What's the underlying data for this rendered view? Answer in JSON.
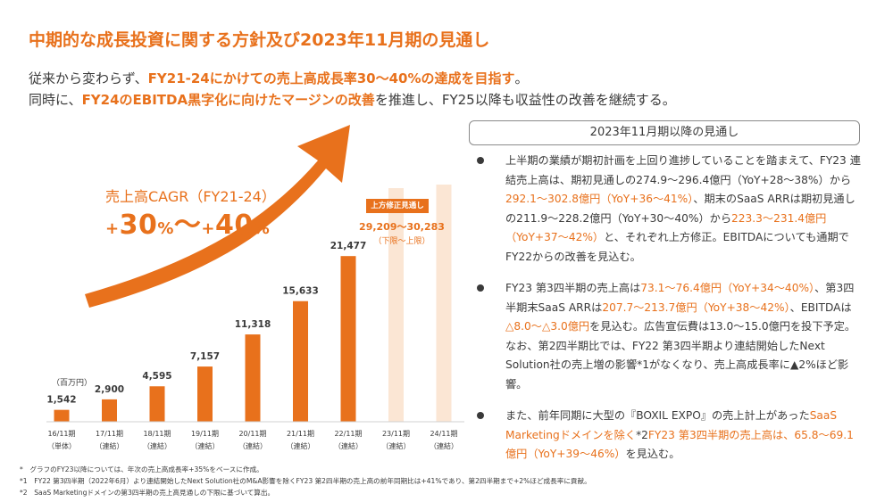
{
  "title": "中期的な成長投資に関する方針及び2023年11月期の見通し",
  "lead": {
    "line1_pre": "従来から変わらず、",
    "line1_hl": "FY21-24にかけての売上高成長率30～40%の達成を目指す",
    "line1_post": "。",
    "line2_pre": "同時に、",
    "line2_hl": "FY24のEBITDA黒字化に向けたマージンの改善",
    "line2_post": "を推進し、FY25以降も収益性の改善を継続する。"
  },
  "cagr": {
    "label": "売上高CAGR（FY21-24）",
    "plus1": "+",
    "value1": "30",
    "pct1": "%",
    "tilde": "～",
    "plus2": "+",
    "value2": "40",
    "pct2": "%"
  },
  "chart_data": {
    "type": "bar",
    "unit": "（百万円）",
    "categories": [
      "16/11期",
      "17/11期",
      "18/11期",
      "19/11期",
      "20/11期",
      "21/11期",
      "22/11期",
      "23/11期",
      "24/11期"
    ],
    "sublabels": [
      "（単体）",
      "（連結）",
      "（連結）",
      "（連結）",
      "（連結）",
      "（連結）",
      "（連結）",
      "（連結）",
      "（連結）"
    ],
    "values": [
      1542,
      2900,
      4595,
      7157,
      11318,
      15633,
      21477,
      30283,
      null
    ],
    "value_labels": [
      "1,542",
      "2,900",
      "4,595",
      "7,157",
      "11,318",
      "15,633",
      "21,477",
      "",
      ""
    ],
    "forecast_range": [
      29209,
      30283
    ],
    "revised_tag": "上方修正見通し",
    "revised_range_label": "29,209～30,283",
    "revised_note": "（下限～上限）",
    "colors": {
      "actual": "#e8711c",
      "forecast": "#fbe6d4",
      "text": "#3a3a3a"
    }
  },
  "outlook": {
    "header": "2023年11月期以降の見通し",
    "b1": [
      {
        "t": "上半期の業績が期初計画を上回り進捗していることを踏まえて、FY23 連結売上高は、期初見通しの274.9～296.4億円（YoY+28～38%）から",
        "hl": false
      },
      {
        "t": "292.1～302.8億円（YoY+36～41%）",
        "hl": true
      },
      {
        "t": "、期末のSaaS ARRは期初見通しの211.9～228.2億円（YoY+30～40%）から",
        "hl": false
      },
      {
        "t": "223.3～231.4億円（YoY+37～42%）",
        "hl": true
      },
      {
        "t": "と、それぞれ上方修正。EBITDAについても通期でFY22からの改善を見込む。",
        "hl": false
      }
    ],
    "b2": [
      {
        "t": "FY23 第3四半期の売上高は",
        "hl": false
      },
      {
        "t": "73.1～76.4億円（YoY+34～40%）",
        "hl": true
      },
      {
        "t": "、第3四半期末SaaS ARRは",
        "hl": false
      },
      {
        "t": "207.7～213.7億円（YoY+38～42%）",
        "hl": true
      },
      {
        "t": "、EBITDAは",
        "hl": false
      },
      {
        "t": "△8.0～△3.0億円",
        "hl": true
      },
      {
        "t": "を見込む。広告宣伝費は13.0～15.0億円を投下予定。なお、第2四半期比では、FY22 第3四半期より連結開始したNext Solution社の売上増の影響*1がなくなり、売上高成長率に▲2%ほど影響。",
        "hl": false
      }
    ],
    "b3": [
      {
        "t": "また、前年同期に大型の『BOXIL EXPO』の売上計上があった",
        "hl": false
      },
      {
        "t": "SaaS Marketingドメインを除く",
        "hl": true
      },
      {
        "t": "*2",
        "hl": false
      },
      {
        "t": "FY23 第3四半期の売上高は、65.8～69.1億円（YoY+39～46%）",
        "hl": true
      },
      {
        "t": "を見込む。",
        "hl": false
      }
    ]
  },
  "footnotes": [
    "*　グラフのFY23以降については、年次の売上高成長率+35%をベースに作成。",
    "*1　FY22 第3四半期（2022年6月）より連結開始したNext Solution社のM&A影響を除くFY23 第2四半期の売上高の前年同期比は+41%であり、第2四半期まで+2%ほど成長率に貢献。",
    "*2　SaaS Marketingドメインの第3四半期の売上高見通しの下限に基づいて算出。"
  ]
}
